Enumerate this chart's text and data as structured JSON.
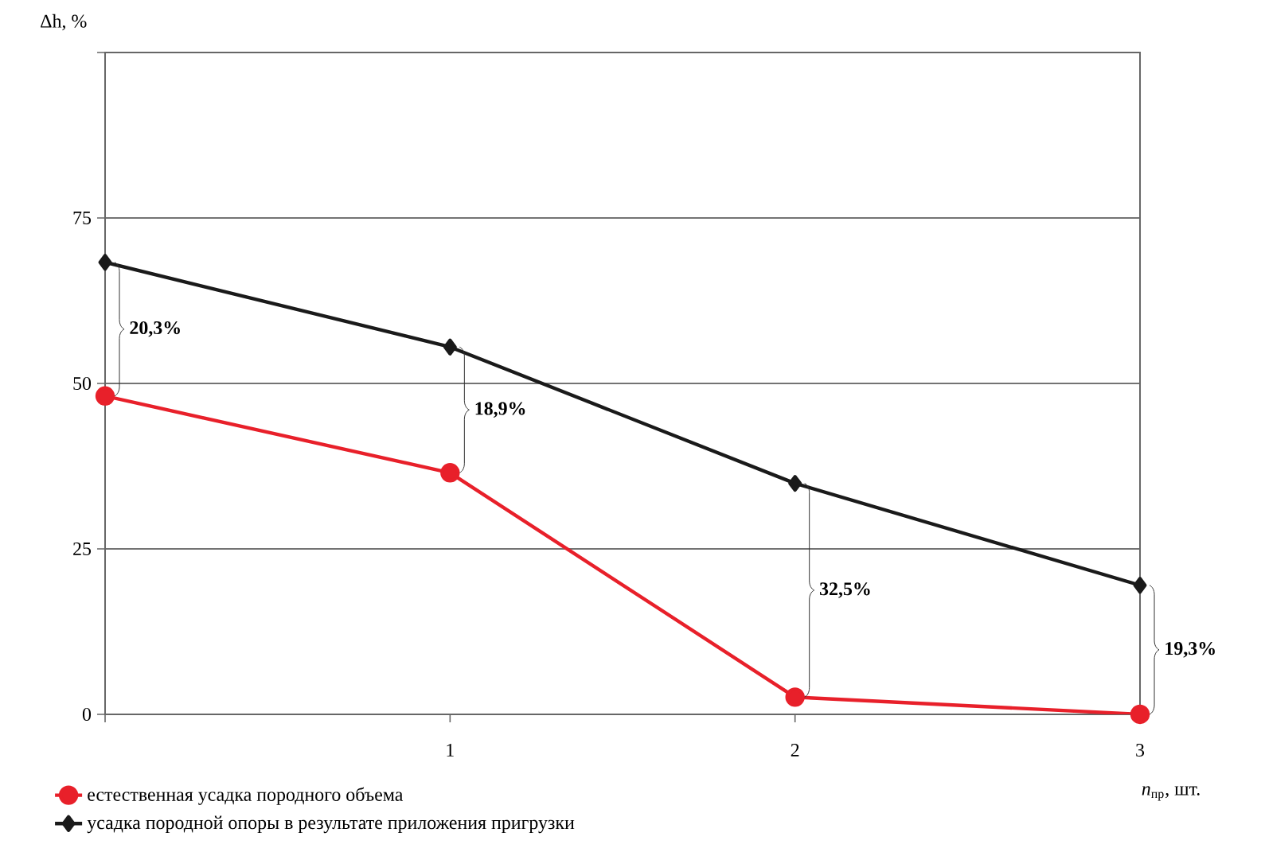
{
  "chart_data": {
    "type": "line",
    "xlabel": "*n*$_{пр}$, шт.",
    "ylabel": "Δh, %",
    "x": [
      0,
      1,
      2,
      3
    ],
    "series": [
      {
        "name": "естественная усадка породного объема",
        "color": "#e8202a",
        "marker": "circle",
        "values": [
          48.1,
          36.5,
          2.6,
          0
        ]
      },
      {
        "name": "усадка породной опоры в результате приложения пригрузки",
        "color": "#1a1a1a",
        "marker": "diamond",
        "values": [
          68.3,
          55.5,
          34.9,
          19.5
        ]
      }
    ],
    "xlim": [
      0,
      3
    ],
    "xticks": [
      {
        "value": 0,
        "label": null
      },
      1,
      2,
      3
    ],
    "ylim": [
      0,
      100
    ],
    "yticks": [
      0,
      25,
      50,
      75,
      {
        "value": 100,
        "label": null
      }
    ],
    "grid": "y",
    "legend": "bottom left",
    "line_style": "solid",
    "annotations": [
      "20,3%",
      "18,9%",
      "32,5%",
      "19,3%"
    ]
  }
}
